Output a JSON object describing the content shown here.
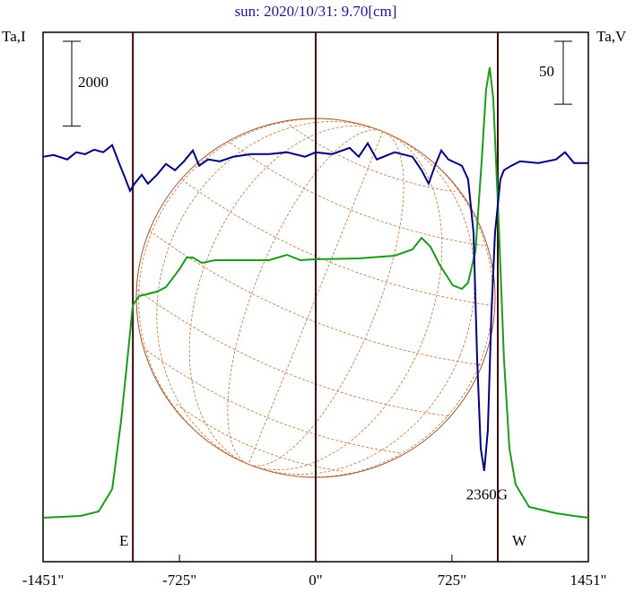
{
  "chart_data": {
    "type": "line",
    "title": "sun: 2020/10/31: 9.70[cm]",
    "xlim": [
      -1451,
      1451
    ],
    "xticks": [
      {
        "value": -1451,
        "label": "-1451\""
      },
      {
        "value": -725,
        "label": "-725\""
      },
      {
        "value": 0,
        "label": "0\""
      },
      {
        "value": 725,
        "label": "725\""
      },
      {
        "value": 1451,
        "label": "1451\""
      }
    ],
    "ylim": [
      -1040,
      11470
    ],
    "y2lim": [
      -322,
      99
    ],
    "scale_bars": [
      {
        "value": 2000
      },
      {
        "value": 50,
        "axis": "y2"
      }
    ],
    "markers": [
      {
        "x": -973,
        "label": "E"
      },
      {
        "x": 0
      },
      {
        "x": 969,
        "label": "W"
      }
    ],
    "annotation": "2360G",
    "series": [
      {
        "name": "Ta,I",
        "color": "#1a9c1a",
        "x": [
          -1451,
          -1251,
          -1155,
          -1083,
          -1036,
          -1002,
          -973,
          -940,
          -845,
          -797,
          -725,
          -687,
          -654,
          -606,
          -535,
          -248,
          -153,
          -81,
          -10,
          229,
          420,
          515,
          563,
          611,
          659,
          730,
          778,
          811,
          850,
          883,
          907,
          926,
          945,
          974,
          1002,
          1031,
          1064,
          1136,
          1279,
          1375,
          1451
        ],
        "values": [
          0,
          42,
          148,
          678,
          2268,
          3752,
          5024,
          5236,
          5342,
          5448,
          5872,
          6148,
          6148,
          6021,
          6084,
          6084,
          6212,
          6084,
          6106,
          6127,
          6190,
          6339,
          6615,
          6403,
          5978,
          5490,
          5406,
          5554,
          6296,
          8416,
          10112,
          10642,
          9900,
          6932,
          3752,
          1632,
          784,
          254,
          106,
          42,
          0
        ]
      },
      {
        "name": "Ta,V",
        "color": "#000080",
        "axis": "y2",
        "x": [
          -1451,
          -1394,
          -1322,
          -1275,
          -1227,
          -1179,
          -1131,
          -1083,
          -1050,
          -1012,
          -988,
          -964,
          -926,
          -893,
          -845,
          -797,
          -749,
          -701,
          -654,
          -620,
          -573,
          -511,
          -439,
          -344,
          -248,
          -153,
          -57,
          0,
          86,
          181,
          229,
          277,
          325,
          420,
          515,
          563,
          601,
          635,
          668,
          706,
          778,
          811,
          840,
          859,
          878,
          897,
          916,
          935,
          954,
          983,
          1002,
          1041,
          1088,
          1184,
          1279,
          1327,
          1375,
          1451
        ],
        "values": [
          0,
          1.4,
          -2.1,
          3.6,
          2.1,
          5.7,
          3.6,
          9.3,
          -3.6,
          -17.8,
          -27.1,
          -21.4,
          -14.3,
          -21.4,
          -14.3,
          -5.7,
          -10.7,
          -3.6,
          5,
          -7.1,
          -2.1,
          -3.6,
          0,
          2.1,
          2.1,
          3.6,
          0,
          3.6,
          2.1,
          7.1,
          0,
          10.7,
          -2.1,
          3.6,
          0,
          -10.7,
          -21.4,
          -7.1,
          5,
          -2.1,
          -7.1,
          -17.8,
          -60.7,
          -160.6,
          -231.9,
          -249.8,
          -217.6,
          -124.9,
          -60.7,
          -17.8,
          -10.7,
          -7.1,
          -3.6,
          -5,
          -2.1,
          3.6,
          -5,
          -5
        ]
      }
    ]
  }
}
